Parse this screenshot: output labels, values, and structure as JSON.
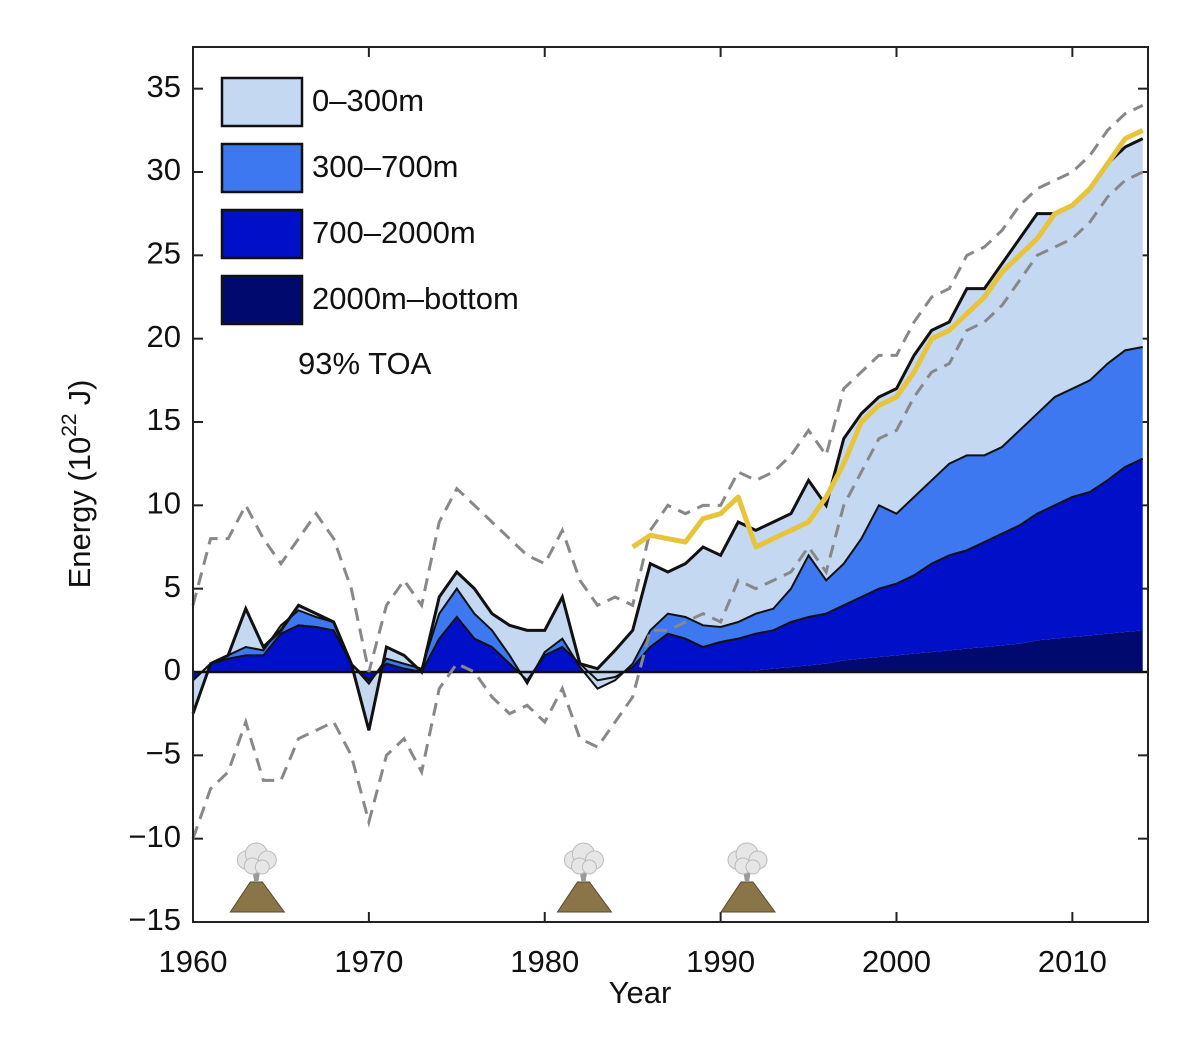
{
  "chart_data": {
    "type": "stacked_area",
    "xlabel": "Year",
    "ylabel": "Energy (10",
    "ylabel_exponent": "22",
    "ylabel_unit": "J)",
    "xlim": [
      1960,
      2014.3
    ],
    "ylim": [
      -15,
      37.5
    ],
    "xticks": [
      1960,
      1970,
      1980,
      1990,
      2000,
      2010
    ],
    "yticks": [
      {
        "value": -15,
        "label": "−15"
      },
      {
        "value": -10,
        "label": "−10"
      },
      {
        "value": -5,
        "label": "−5"
      },
      0,
      5,
      10,
      15,
      20,
      25,
      30,
      35
    ],
    "legend": "upper left",
    "x": [
      1960,
      1961,
      1962,
      1963,
      1964,
      1965,
      1966,
      1967,
      1968,
      1969,
      1970,
      1971,
      1972,
      1973,
      1974,
      1975,
      1976,
      1977,
      1978,
      1979,
      1980,
      1981,
      1982,
      1983,
      1984,
      1985,
      1986,
      1987,
      1988,
      1989,
      1990,
      1991,
      1992,
      1993,
      1994,
      1995,
      1996,
      1997,
      1998,
      1999,
      2000,
      2001,
      2002,
      2003,
      2004,
      2005,
      2006,
      2007,
      2008,
      2009,
      2010,
      2011,
      2012,
      2013,
      2014
    ],
    "series": [
      {
        "name": "2000m–bottom",
        "color": "#000a6e",
        "values": [
          0,
          0,
          0,
          0,
          0,
          0,
          0,
          0,
          0,
          0,
          0,
          0,
          0,
          0,
          0,
          0,
          0,
          0,
          0,
          0,
          0,
          0,
          0,
          0,
          0,
          0,
          0,
          0,
          0,
          0,
          0,
          0,
          0.1,
          0.2,
          0.3,
          0.4,
          0.5,
          0.7,
          0.8,
          0.9,
          1.0,
          1.1,
          1.2,
          1.3,
          1.4,
          1.5,
          1.6,
          1.7,
          1.9,
          2.0,
          2.1,
          2.2,
          2.3,
          2.4,
          2.5
        ]
      },
      {
        "name": "700–2000m",
        "color": "#0010c8",
        "values": [
          -0.5,
          0.5,
          0.8,
          1.0,
          1.0,
          2.3,
          2.8,
          2.7,
          2.5,
          0.5,
          -0.5,
          0.5,
          0.2,
          0,
          2.0,
          3.3,
          2.0,
          1.5,
          0.5,
          -0.5,
          1.0,
          1.5,
          0.5,
          -0.5,
          -0.3,
          0.3,
          1.5,
          2.3,
          2.0,
          1.5,
          1.8,
          2.0,
          2.2,
          2.3,
          2.7,
          2.9,
          3.0,
          3.3,
          3.7,
          4.1,
          4.3,
          4.7,
          5.3,
          5.7,
          5.9,
          6.3,
          6.7,
          7.1,
          7.6,
          8.0,
          8.4,
          8.6,
          9.2,
          9.9,
          10.3
        ]
      },
      {
        "name": "300–700m",
        "color": "#3d78f0",
        "values": [
          0,
          0,
          0.2,
          0.5,
          0.3,
          0.5,
          0.9,
          0.6,
          0.5,
          0,
          -0.2,
          0.3,
          0.3,
          0.2,
          1.5,
          1.7,
          1.5,
          1.0,
          0.5,
          -0.2,
          0.2,
          0.5,
          -0.2,
          -0.5,
          -0.2,
          0.2,
          1.0,
          1.2,
          1.3,
          1.3,
          0.9,
          1.0,
          1.2,
          1.3,
          2.0,
          3.7,
          2.0,
          2.5,
          3.5,
          5.0,
          4.2,
          4.7,
          5.0,
          5.5,
          5.7,
          5.2,
          5.2,
          5.7,
          6.0,
          6.5,
          6.5,
          6.7,
          7.0,
          7.0,
          6.7
        ]
      },
      {
        "name": "0–300m",
        "color": "#c4d8f2",
        "values": [
          -2.0,
          0,
          0,
          2.3,
          0.2,
          -0.3,
          0.3,
          0.2,
          0,
          0,
          -2.8,
          0.7,
          0.5,
          -0.2,
          1.0,
          1.0,
          1.5,
          1.0,
          1.8,
          3.2,
          1.3,
          2.5,
          0.2,
          1.2,
          1.8,
          2.0,
          4.0,
          2.5,
          3.2,
          4.7,
          4.3,
          6.0,
          5.0,
          5.2,
          4.5,
          4.5,
          4.5,
          7.5,
          7.5,
          6.5,
          7.5,
          8.5,
          9.0,
          8.5,
          10.0,
          10.0,
          11.0,
          11.5,
          12.0,
          11.0,
          11.0,
          11.5,
          12.0,
          12.2,
          12.5
        ]
      }
    ],
    "uncertainty": {
      "color": "#888888",
      "upper": [
        4,
        8,
        8,
        10,
        8,
        6.5,
        8,
        9.5,
        8,
        5,
        0,
        4,
        5.5,
        4,
        9,
        11,
        10,
        9,
        8,
        7,
        6.5,
        8.5,
        5.5,
        4,
        4.5,
        4,
        8.5,
        10,
        9.5,
        10,
        10,
        12,
        11.5,
        12,
        13,
        14.5,
        13,
        17,
        18,
        19,
        19,
        21,
        22.5,
        23,
        25,
        25.5,
        26.5,
        28,
        29,
        29.5,
        30,
        31,
        32.5,
        33.5,
        34
      ],
      "lower": [
        -10,
        -7,
        -6,
        -3,
        -6.5,
        -6.5,
        -4,
        -3.5,
        -3,
        -5,
        -9,
        -5,
        -4,
        -6,
        -1,
        0.5,
        0,
        -1.5,
        -2.5,
        -2,
        -3,
        -1,
        -4,
        -4.5,
        -3,
        -1.5,
        2.5,
        2.5,
        3,
        3.5,
        3,
        5.5,
        5,
        5.5,
        6,
        7.5,
        6,
        10,
        12,
        14,
        14.5,
        16.5,
        18,
        18.5,
        20.5,
        21,
        22,
        23.5,
        25,
        25.5,
        26,
        27,
        28.5,
        29.5,
        30
      ]
    },
    "toa": {
      "name": "93% TOA",
      "color": "#e8c43a",
      "values": [
        null,
        null,
        null,
        null,
        null,
        null,
        null,
        null,
        null,
        null,
        null,
        null,
        null,
        null,
        null,
        null,
        null,
        null,
        null,
        null,
        null,
        null,
        null,
        null,
        null,
        7.5,
        8.2,
        8.0,
        7.8,
        9.2,
        9.5,
        10.5,
        7.5,
        8,
        8.5,
        9.0,
        10.5,
        12.5,
        15,
        16,
        16.5,
        18,
        20,
        20.5,
        21.5,
        22.5,
        24,
        25,
        26,
        27.5,
        28,
        29,
        30.5,
        32,
        32.5
      ]
    },
    "volcanoes": [
      1963.6,
      1982.2,
      1991.5
    ]
  }
}
